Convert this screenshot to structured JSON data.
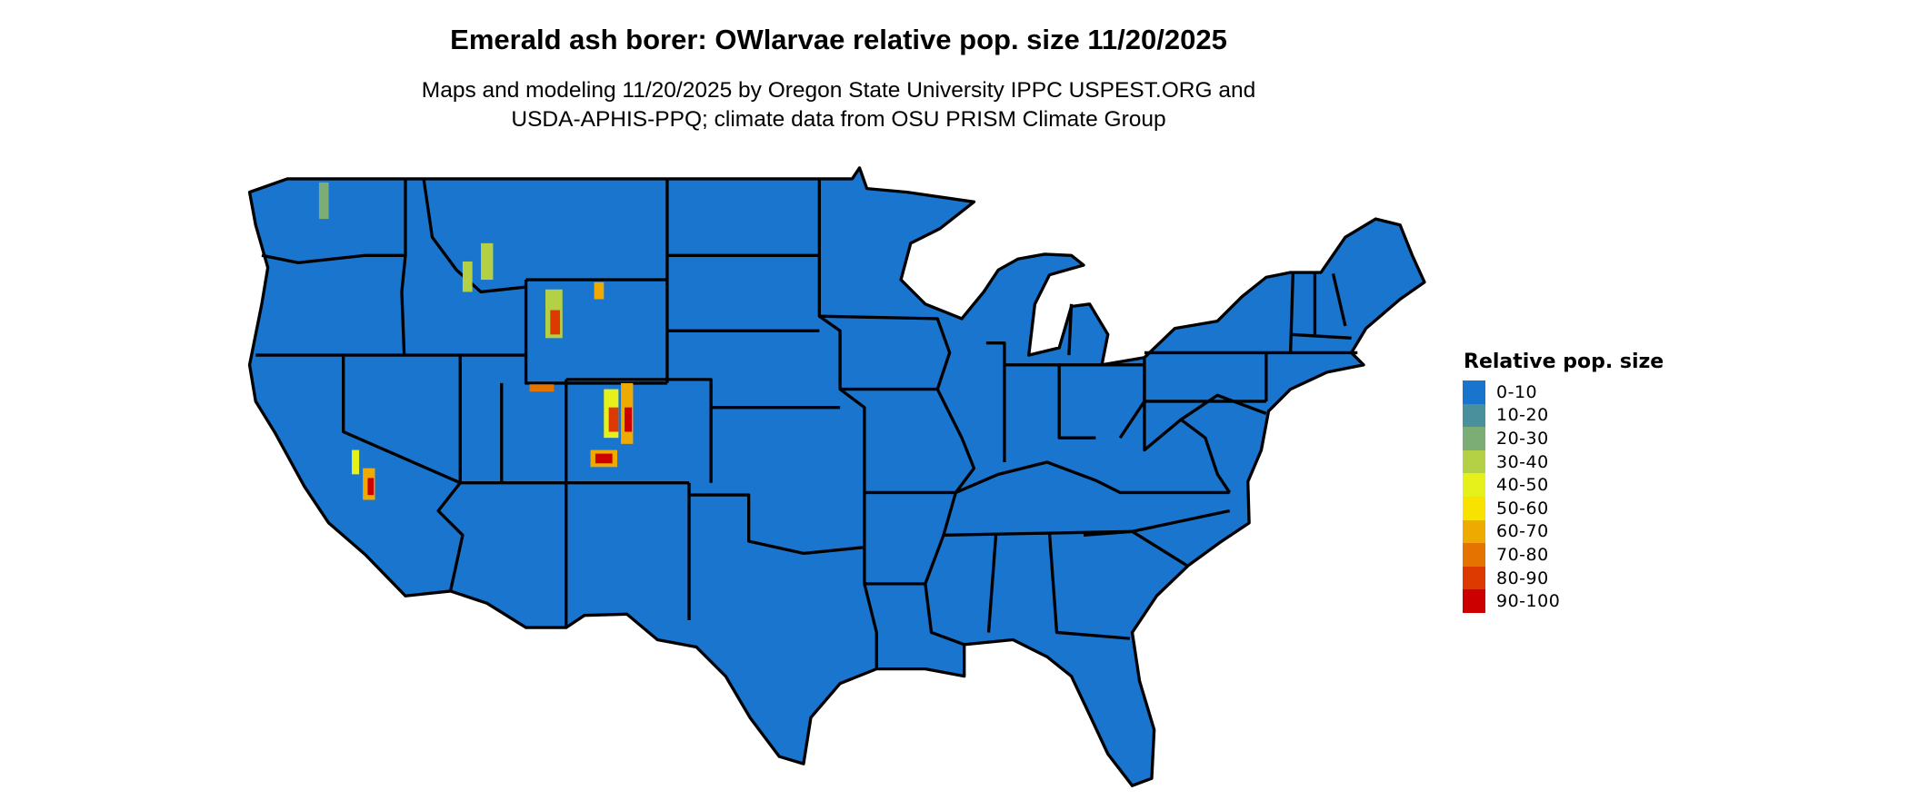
{
  "title": "Emerald ash borer: OWlarvae relative pop. size 11/20/2025",
  "subtitle_lines": [
    "Maps and modeling 11/20/2025 by Oregon State University IPPC USPEST.ORG and",
    "USDA-APHIS-PPQ; climate data from OSU PRISM Climate Group"
  ],
  "map": {
    "region": "Contiguous United States",
    "base_fill": "#1a75cf",
    "boundary_color": "#000000",
    "dominant_class": "0-10",
    "hotspot_areas": [
      "Rocky Mountains (Colorado)",
      "Wyoming ranges",
      "Utah Uinta/Wasatch",
      "Sierra Nevada (California)",
      "Idaho/Montana mountains",
      "Washington Cascades"
    ]
  },
  "legend": {
    "title": "Relative pop. size",
    "items": [
      {
        "label": "0-10",
        "color": "#1874cd"
      },
      {
        "label": "10-20",
        "color": "#4a8f9c"
      },
      {
        "label": "20-30",
        "color": "#7bad74"
      },
      {
        "label": "30-40",
        "color": "#b4d045"
      },
      {
        "label": "40-50",
        "color": "#e6f01a"
      },
      {
        "label": "50-60",
        "color": "#f8e300"
      },
      {
        "label": "60-70",
        "color": "#eeaa00"
      },
      {
        "label": "70-80",
        "color": "#e47300"
      },
      {
        "label": "80-90",
        "color": "#dc3a00"
      },
      {
        "label": "90-100",
        "color": "#cd0000"
      }
    ]
  }
}
